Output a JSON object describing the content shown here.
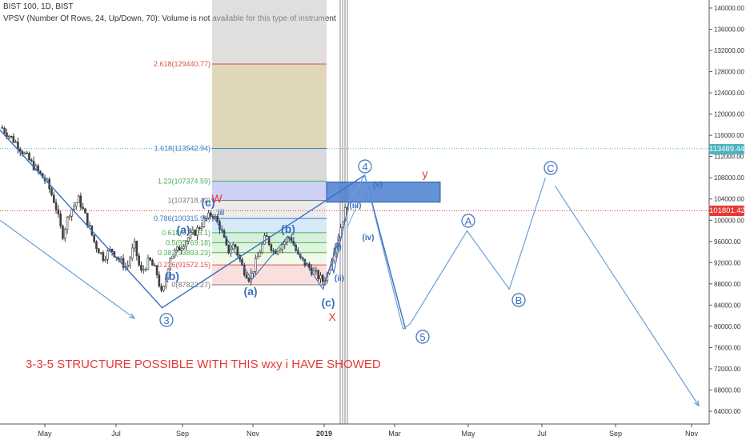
{
  "header": {
    "symbol_line": "BIST 100, 1D, BIST",
    "indicator_line": "VPSV (Number Of Rows, 24, Up/Down, 70): Volume is not available for this type of instrument"
  },
  "colors": {
    "candle": "#3d3d3d",
    "wave_dark": "#3a6fbf",
    "wave_light": "#6a9fd8",
    "fib_red": "#e05050",
    "fib_green": "#4caf50",
    "fib_blue": "#3b78c4",
    "zone_blue": "#4a7fd0",
    "tan": "#d6c8a0",
    "annotation_red": "#e53935",
    "price_tag_red": "#e53935",
    "price_tag_teal": "#4fb3bf"
  },
  "price_tags": {
    "upper": "113489.44",
    "current": "101801.42"
  },
  "annotation": "3-3-5 STRUCTURE POSSIBLE WITH THIS wxy i HAVE SHOWED",
  "chart_data": {
    "type": "line",
    "title": "BIST 100, 1D, BIST",
    "x_tick_labels": [
      "May",
      "Jul",
      "Sep",
      "Nov",
      "2019",
      "Mar",
      "May",
      "Jul",
      "Sep",
      "Nov"
    ],
    "y_tick_labels": [
      "140000.00",
      "136000.00",
      "132000.00",
      "128000.00",
      "124000.00",
      "120000.00",
      "116000.00",
      "112000.00",
      "108000.00",
      "104000.00",
      "100000.00",
      "96000.00",
      "92000.00",
      "88000.00",
      "84000.00",
      "80000.00",
      "76000.00",
      "72000.00",
      "68000.00",
      "64000.00"
    ],
    "ylim": [
      62000,
      142000
    ],
    "horizontal_levels": [
      113489.44,
      101801.42
    ],
    "fib_levels": [
      {
        "label": "2.618(129440.77)",
        "value": 129440.77
      },
      {
        "label": "1.618(113542.94)",
        "value": 113542.94
      },
      {
        "label": "1.23(107374.59)",
        "value": 107374.59
      },
      {
        "label": "1(103718.42)",
        "value": 103718.42
      },
      {
        "label": "0.786(100315.96)",
        "value": 100315.96
      },
      {
        "label": "0.618(97645.1)",
        "value": 97645.1
      },
      {
        "label": "0.5(95769.18)",
        "value": 95769.18
      },
      {
        "label": "0.382(93893.23)",
        "value": 93893.23
      },
      {
        "label": "0.236(91572.15)",
        "value": 91572.15
      },
      {
        "label": "0(87822.27)",
        "value": 87822.27
      }
    ],
    "price_path": [
      [
        "2018-04-02",
        117500
      ],
      [
        "2018-04-12",
        114500
      ],
      [
        "2018-04-24",
        110000
      ],
      [
        "2018-05-03",
        107000
      ],
      [
        "2018-05-10",
        103000
      ],
      [
        "2018-05-16",
        97000
      ],
      [
        "2018-05-22",
        101500
      ],
      [
        "2018-05-30",
        104000
      ],
      [
        "2018-06-06",
        100000
      ],
      [
        "2018-06-13",
        95500
      ],
      [
        "2018-06-20",
        93000
      ],
      [
        "2018-06-27",
        94500
      ],
      [
        "2018-07-04",
        92500
      ],
      [
        "2018-07-11",
        91000
      ],
      [
        "2018-07-18",
        95500
      ],
      [
        "2018-07-24",
        90000
      ],
      [
        "2018-08-01",
        92500
      ],
      [
        "2018-08-08",
        90000
      ],
      [
        "2018-08-13",
        85500
      ],
      [
        "2018-08-20",
        93000
      ],
      [
        "2018-08-28",
        94500
      ],
      [
        "2018-09-05",
        96500
      ],
      [
        "2018-09-13",
        98000
      ],
      [
        "2018-09-20",
        100000
      ],
      [
        "2018-09-27",
        101300
      ],
      [
        "2018-10-04",
        98500
      ],
      [
        "2018-10-10",
        94000
      ],
      [
        "2018-10-16",
        95500
      ],
      [
        "2018-10-23",
        91000
      ],
      [
        "2018-10-29",
        89000
      ],
      [
        "2018-11-05",
        93000
      ],
      [
        "2018-11-12",
        97000
      ],
      [
        "2018-11-19",
        94000
      ],
      [
        "2018-11-26",
        95500
      ],
      [
        "2018-12-03",
        97000
      ],
      [
        "2018-12-10",
        93000
      ],
      [
        "2018-12-17",
        91500
      ],
      [
        "2018-12-24",
        90000
      ],
      [
        "2018-12-31",
        88500
      ],
      [
        "2019-01-04",
        90000
      ],
      [
        "2019-01-09",
        94500
      ],
      [
        "2019-01-14",
        98000
      ],
      [
        "2019-01-18",
        101500
      ],
      [
        "2019-01-22",
        103500
      ]
    ],
    "wave_labels": [
      {
        "label": "3",
        "style": "circle"
      },
      {
        "label": "(a)",
        "style": "text"
      },
      {
        "label": "(b)",
        "style": "text"
      },
      {
        "label": "(c)",
        "style": "text"
      },
      {
        "label": "W",
        "style": "red"
      },
      {
        "label": "iii",
        "style": "small"
      },
      {
        "label": "(a)",
        "style": "text"
      },
      {
        "label": "(b)",
        "style": "text"
      },
      {
        "label": "(c)",
        "style": "text"
      },
      {
        "label": "X",
        "style": "red"
      },
      {
        "label": "(i)",
        "style": "small"
      },
      {
        "label": "(ii)",
        "style": "small"
      },
      {
        "label": "(iii)",
        "style": "small"
      },
      {
        "label": "(iv)",
        "style": "small"
      },
      {
        "label": "(v)",
        "style": "small"
      },
      {
        "label": "4",
        "style": "circle"
      },
      {
        "label": "y",
        "style": "red"
      },
      {
        "label": "5",
        "style": "circle"
      },
      {
        "label": "A",
        "style": "circle"
      },
      {
        "label": "B",
        "style": "circle"
      },
      {
        "label": "C",
        "style": "circle"
      }
    ],
    "projected_path": [
      [
        "2019-01-22",
        103500
      ],
      [
        "2019-02-04",
        108500
      ],
      [
        "2019-03-08",
        79500
      ],
      [
        "2019-03-14",
        80500
      ],
      [
        "2019-04-30",
        98000
      ],
      [
        "2019-06-04",
        87000
      ],
      [
        "2019-07-04",
        108000
      ],
      [
        "2019-07-12",
        106500
      ],
      [
        "2019-11-07",
        65000
      ]
    ]
  }
}
